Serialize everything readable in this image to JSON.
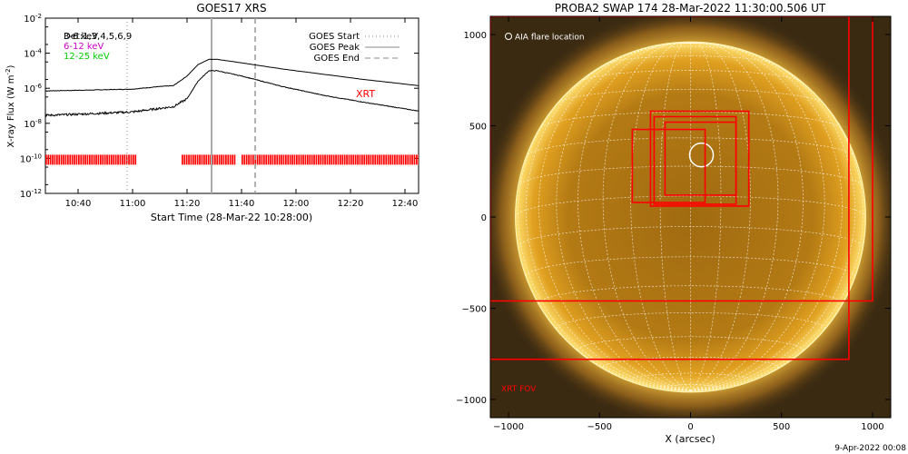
{
  "chart_data": [
    {
      "type": "line",
      "title": "GOES17 XRS",
      "xlabel": "Start Time (28-Mar-22 10:28:00)",
      "ylabel": "X-ray Flux (W m^-2)",
      "ylabel_main": "X-ray Flux (W m",
      "ylabel_sup": "-2",
      "ylabel_close": ")",
      "x_ticks": [
        "10:40",
        "11:00",
        "11:20",
        "11:40",
        "12:00",
        "12:20",
        "12:40"
      ],
      "y_ticks": [
        {
          "value": -12,
          "label": "10",
          "exp": "-12"
        },
        {
          "value": -10,
          "label": "10",
          "exp": "-10"
        },
        {
          "value": -8,
          "label": "10",
          "exp": "-8"
        },
        {
          "value": -6,
          "label": "10",
          "exp": "-6"
        },
        {
          "value": -4,
          "label": "10",
          "exp": "-4"
        },
        {
          "value": -2,
          "label": "10",
          "exp": "-2"
        }
      ],
      "xlim": [
        "10:28",
        "12:45"
      ],
      "ylim_log10": [
        -12,
        -2
      ],
      "energy_legend": [
        {
          "label": "Det:1,3,4,5,6,9",
          "color": "#000000"
        },
        {
          "label": "6-12 keV",
          "color": "#cc00cc"
        },
        {
          "label": "12-25 keV",
          "color": "#00cc00"
        }
      ],
      "legend_overlap_text": "3-6 keV",
      "marker_legend": [
        {
          "label": "GOES Start",
          "style": "dotted"
        },
        {
          "label": "GOES Peak",
          "style": "solid"
        },
        {
          "label": "GOES End",
          "style": "dashed"
        }
      ],
      "markers": {
        "start": "10:58",
        "peak": "11:29",
        "end": "11:45"
      },
      "xrt_label": "XRT",
      "xrt_color": "#ff0000",
      "xrt_coverage": [
        [
          "10:28",
          "11:01"
        ],
        [
          "11:18",
          "11:38"
        ],
        [
          "11:40",
          "12:45"
        ]
      ],
      "series": [
        {
          "name": "",
          "x": [
            "10:28",
            "10:45",
            "11:00",
            "11:10",
            "11:15",
            "11:20",
            "11:24",
            "11:28",
            "11:31",
            "11:40",
            "11:55",
            "12:10",
            "12:25",
            "12:45"
          ],
          "log10_flux": [
            -6.15,
            -6.1,
            -6.05,
            -5.9,
            -5.85,
            -5.3,
            -4.65,
            -4.35,
            -4.35,
            -4.55,
            -4.9,
            -5.2,
            -5.5,
            -5.85
          ]
        },
        {
          "name": "",
          "x": [
            "10:28",
            "10:45",
            "11:00",
            "11:10",
            "11:15",
            "11:20",
            "11:24",
            "11:28",
            "11:31",
            "11:40",
            "11:55",
            "12:10",
            "12:25",
            "12:45"
          ],
          "log10_flux": [
            -7.55,
            -7.45,
            -7.35,
            -7.15,
            -7.05,
            -6.6,
            -5.6,
            -5.0,
            -5.0,
            -5.3,
            -5.9,
            -6.4,
            -6.8,
            -7.3
          ]
        }
      ]
    },
    {
      "type": "heatmap",
      "title": "PROBA2 SWAP 174 28-Mar-2022 11:30:00.506 UT",
      "xlabel": "X (arcsec)",
      "ylabel": "",
      "x_ticks": [
        -1000,
        -500,
        0,
        500,
        1000
      ],
      "y_ticks": [
        -1000,
        -500,
        0,
        500,
        1000
      ],
      "xlim": [
        -1100,
        1100
      ],
      "ylim": [
        -1100,
        1100
      ],
      "solar_radius_arcsec": 962,
      "aia_label": "AIA flare location",
      "aia_flare_location": {
        "x": 60,
        "y": 340,
        "r": 65
      },
      "xrt_fov_label": "XRT FOV",
      "xrt_fovs": [
        {
          "x0": -1100,
          "x1": 1000,
          "y0": -460,
          "y1": 1100
        },
        {
          "x0": -1100,
          "x1": 870,
          "y0": -780,
          "y1": 1100
        },
        {
          "x0": -220,
          "x1": 320,
          "y0": 60,
          "y1": 580
        },
        {
          "x0": -200,
          "x1": 250,
          "y0": 70,
          "y1": 550
        },
        {
          "x0": -140,
          "x1": 250,
          "y0": 120,
          "y1": 520
        },
        {
          "x0": -320,
          "x1": 80,
          "y0": 80,
          "y1": 480
        }
      ],
      "xrt_color": "#ff0000"
    }
  ],
  "footer": {
    "timestamp": "9-Apr-2022 00:08"
  }
}
